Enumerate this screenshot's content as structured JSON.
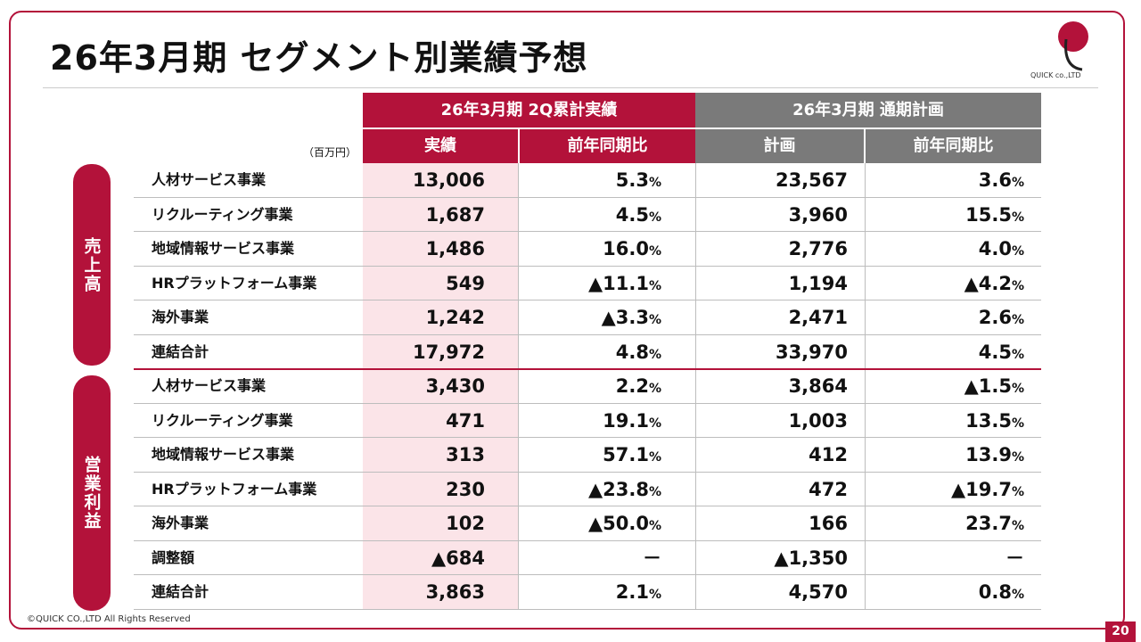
{
  "title": "26年3月期 セグメント別業績予想",
  "logo_text": "QUICK co.,LTD",
  "copyright": "©QUICK CO.,LTD All Rights Reserved",
  "page_number": "20",
  "unit": "（百万円）",
  "headers": {
    "group1": "26年3月期 2Q累計実績",
    "group2": "26年3月期 通期計画",
    "col1": "実績",
    "col2": "前年同期比",
    "col3": "計画",
    "col4": "前年同期比"
  },
  "sections": {
    "sales": "売上高",
    "profit": "営業利益"
  },
  "rows": [
    {
      "label": "人材サービス事業",
      "actual": "13,006",
      "actual_yoy": "5.3",
      "plan": "23,567",
      "plan_yoy": "3.6"
    },
    {
      "label": "リクルーティング事業",
      "actual": "1,687",
      "actual_yoy": "4.5",
      "plan": "3,960",
      "plan_yoy": "15.5"
    },
    {
      "label": "地域情報サービス事業",
      "actual": "1,486",
      "actual_yoy": "16.0",
      "plan": "2,776",
      "plan_yoy": "4.0"
    },
    {
      "label": "HRプラットフォーム事業",
      "actual": "549",
      "actual_yoy": "▲11.1",
      "plan": "1,194",
      "plan_yoy": "▲4.2"
    },
    {
      "label": "海外事業",
      "actual": "1,242",
      "actual_yoy": "▲3.3",
      "plan": "2,471",
      "plan_yoy": "2.6"
    },
    {
      "label": "連結合計",
      "actual": "17,972",
      "actual_yoy": "4.8",
      "plan": "33,970",
      "plan_yoy": "4.5"
    },
    {
      "label": "人材サービス事業",
      "actual": "3,430",
      "actual_yoy": "2.2",
      "plan": "3,864",
      "plan_yoy": "▲1.5"
    },
    {
      "label": "リクルーティング事業",
      "actual": "471",
      "actual_yoy": "19.1",
      "plan": "1,003",
      "plan_yoy": "13.5"
    },
    {
      "label": "地域情報サービス事業",
      "actual": "313",
      "actual_yoy": "57.1",
      "plan": "412",
      "plan_yoy": "13.9"
    },
    {
      "label": "HRプラットフォーム事業",
      "actual": "230",
      "actual_yoy": "▲23.8",
      "plan": "472",
      "plan_yoy": "▲19.7"
    },
    {
      "label": "海外事業",
      "actual": "102",
      "actual_yoy": "▲50.0",
      "plan": "166",
      "plan_yoy": "23.7"
    },
    {
      "label": "調整額",
      "actual": "▲684",
      "actual_yoy": "－",
      "plan": "▲1,350",
      "plan_yoy": "－"
    },
    {
      "label": "連結合計",
      "actual": "3,863",
      "actual_yoy": "2.1",
      "plan": "4,570",
      "plan_yoy": "0.8"
    }
  ],
  "pct_suffix": "%",
  "colors": {
    "accent": "#b3123a",
    "gray": "#7a7a7a",
    "highlight": "#fbe4e8"
  }
}
